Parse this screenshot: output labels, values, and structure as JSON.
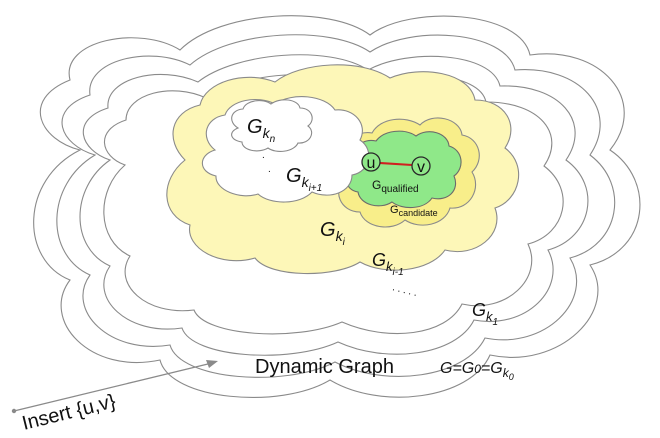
{
  "labels": {
    "g_kn": {
      "base": "G",
      "sub": "k",
      "subsub": "n"
    },
    "g_ki1": {
      "base": "G",
      "sub": "k",
      "subsub": "i+1"
    },
    "g_ki": {
      "base": "G",
      "sub": "k",
      "subsub": "i"
    },
    "g_kim1": {
      "base": "G",
      "sub": "k",
      "subsub": "i-1"
    },
    "g_k1": {
      "base": "G",
      "sub": "k",
      "subsub": "1"
    },
    "g_qualified": {
      "base": "G",
      "sub": "qualified"
    },
    "g_candidate": {
      "base": "G",
      "sub": "candidate"
    },
    "vertex_u": "u",
    "vertex_v": "v",
    "dynamic_graph": "Dynamic Graph",
    "formula": {
      "g": "G=G",
      "g0sub": "0",
      "eq": "=G",
      "k": "k",
      "k0sub": "0"
    },
    "insert": "Insert {u,v}",
    "dots": ". . . . ."
  },
  "colors": {
    "outline": "#8a8a8a",
    "yellow": "#fdf7b8",
    "yellow_mid": "#f8ee8a",
    "green": "#8fe889",
    "green_dark": "#3a9a3a",
    "edge": "#d02020"
  }
}
